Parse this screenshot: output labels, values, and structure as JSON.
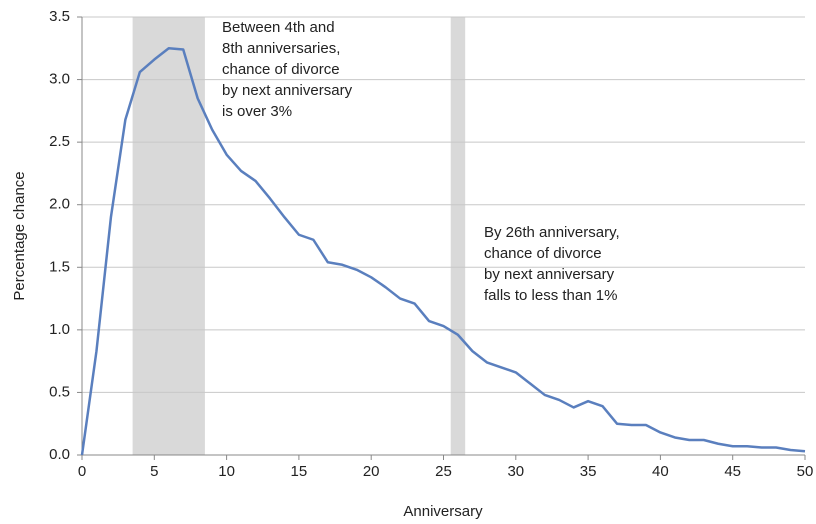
{
  "chart_data": {
    "type": "line",
    "xlabel": "Anniversary",
    "ylabel": "Percentage chance",
    "x": [
      0,
      1,
      2,
      3,
      4,
      5,
      6,
      7,
      8,
      9,
      10,
      11,
      12,
      13,
      14,
      15,
      16,
      17,
      18,
      19,
      20,
      21,
      22,
      23,
      24,
      25,
      26,
      27,
      28,
      29,
      30,
      31,
      32,
      33,
      34,
      35,
      36,
      37,
      38,
      39,
      40,
      41,
      42,
      43,
      44,
      45,
      46,
      47,
      48,
      49,
      50
    ],
    "series": [
      {
        "color": "#5a7fbe",
        "values": [
          0.0,
          0.83,
          1.9,
          2.68,
          3.06,
          3.16,
          3.25,
          3.24,
          2.85,
          2.6,
          2.4,
          2.27,
          2.19,
          2.05,
          1.9,
          1.76,
          1.72,
          1.54,
          1.52,
          1.48,
          1.42,
          1.34,
          1.25,
          1.21,
          1.07,
          1.03,
          0.96,
          0.83,
          0.74,
          0.7,
          0.66,
          0.57,
          0.48,
          0.44,
          0.38,
          0.43,
          0.39,
          0.25,
          0.24,
          0.24,
          0.18,
          0.14,
          0.12,
          0.12,
          0.09,
          0.07,
          0.07,
          0.06,
          0.06,
          0.04,
          0.03
        ]
      }
    ],
    "shaded_ranges": [
      [
        3.5,
        8.5
      ],
      [
        25.5,
        26.5
      ]
    ],
    "shade_color": "#d9d9d9",
    "annotations": [
      [
        "Between 4th and",
        "8th anniversaries,",
        "chance of divorce",
        "by next anniversary",
        "is over 3%"
      ],
      [
        "By 26th anniversary,",
        "chance of divorce",
        "by next anniversary",
        "falls to less than 1%"
      ]
    ],
    "xlim": [
      0,
      50
    ],
    "xticks": [
      0,
      5,
      10,
      15,
      20,
      25,
      30,
      35,
      40,
      45,
      50
    ],
    "ylim": [
      0,
      3.5
    ],
    "yticks": [
      {
        "value": 0,
        "label": "0.0"
      },
      {
        "value": 0.5,
        "label": "0.5"
      },
      {
        "value": 1,
        "label": "1.0"
      },
      {
        "value": 1.5,
        "label": "1.5"
      },
      {
        "value": 2,
        "label": "2.0"
      },
      {
        "value": 2.5,
        "label": "2.5"
      },
      {
        "value": 3,
        "label": "3.0"
      },
      {
        "value": 3.5,
        "label": "3.5"
      }
    ],
    "grid": true
  }
}
